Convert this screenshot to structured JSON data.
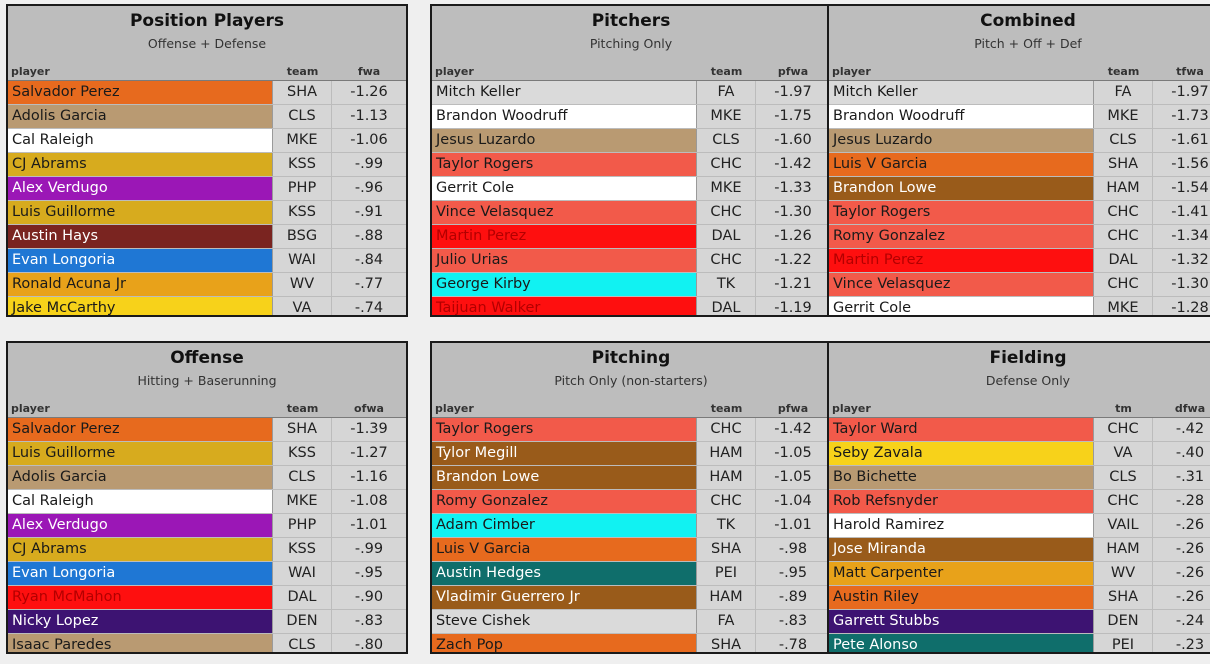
{
  "colors": {
    "SHA": "#e76a1e",
    "CLS": "#b99a72",
    "MKE": "#ffffff",
    "KSS": "#d7ab1e",
    "PHP": "#9b17b6",
    "BSG": "#7a2420",
    "WAI": "#1f77d4",
    "WV": "#e8a21a",
    "VA": "#f7d21a",
    "FA": "#dadada",
    "CHC": "#f25a4a",
    "DAL": "#fe0f0f",
    "TK": "#11f2f2",
    "HAM": "#995b1a",
    "DEN": "#3d1372",
    "PEI": "#0f6e6b",
    "VAIL": "#ffffff"
  },
  "panels": [
    {
      "title": "Position Players",
      "subtitle": "Offense + Defense",
      "headers": [
        "player",
        "team",
        "fwa"
      ],
      "rows": [
        {
          "player": "Salvador Perez",
          "team": "SHA",
          "value": "-1.26"
        },
        {
          "player": "Adolis Garcia",
          "team": "CLS",
          "value": "-1.13"
        },
        {
          "player": "Cal Raleigh",
          "team": "MKE",
          "value": "-1.06"
        },
        {
          "player": "CJ Abrams",
          "team": "KSS",
          "value": "-.99"
        },
        {
          "player": "Alex Verdugo",
          "team": "PHP",
          "value": "-.96"
        },
        {
          "player": "Luis Guillorme",
          "team": "KSS",
          "value": "-.91"
        },
        {
          "player": "Austin Hays",
          "team": "BSG",
          "value": "-.88"
        },
        {
          "player": "Evan Longoria",
          "team": "WAI",
          "value": "-.84"
        },
        {
          "player": "Ronald Acuna Jr",
          "team": "WV",
          "value": "-.77"
        },
        {
          "player": "Jake McCarthy",
          "team": "VA",
          "value": "-.74"
        }
      ]
    },
    {
      "title": "Pitchers",
      "subtitle": "Pitching Only",
      "headers": [
        "player",
        "team",
        "pfwa"
      ],
      "rows": [
        {
          "player": "Mitch Keller",
          "team": "FA",
          "value": "-1.97"
        },
        {
          "player": "Brandon Woodruff",
          "team": "MKE",
          "value": "-1.75"
        },
        {
          "player": "Jesus Luzardo",
          "team": "CLS",
          "value": "-1.60"
        },
        {
          "player": "Taylor Rogers",
          "team": "CHC",
          "value": "-1.42"
        },
        {
          "player": "Gerrit Cole",
          "team": "MKE",
          "value": "-1.33"
        },
        {
          "player": "Vince Velasquez",
          "team": "CHC",
          "value": "-1.30"
        },
        {
          "player": "Martin Perez",
          "team": "DAL",
          "value": "-1.26"
        },
        {
          "player": "Julio Urias",
          "team": "CHC",
          "value": "-1.22"
        },
        {
          "player": "George Kirby",
          "team": "TK",
          "value": "-1.21"
        },
        {
          "player": "Taijuan Walker",
          "team": "DAL",
          "value": "-1.19"
        }
      ]
    },
    {
      "title": "Combined",
      "subtitle": "Pitch + Off + Def",
      "headers": [
        "player",
        "team",
        "tfwa"
      ],
      "rows": [
        {
          "player": "Mitch Keller",
          "team": "FA",
          "value": "-1.97"
        },
        {
          "player": "Brandon Woodruff",
          "team": "MKE",
          "value": "-1.73"
        },
        {
          "player": "Jesus Luzardo",
          "team": "CLS",
          "value": "-1.61"
        },
        {
          "player": "Luis V Garcia",
          "team": "SHA",
          "value": "-1.56"
        },
        {
          "player": "Brandon Lowe",
          "team": "HAM",
          "value": "-1.54"
        },
        {
          "player": "Taylor Rogers",
          "team": "CHC",
          "value": "-1.41"
        },
        {
          "player": "Romy Gonzalez",
          "team": "CHC",
          "value": "-1.34"
        },
        {
          "player": "Martin Perez",
          "team": "DAL",
          "value": "-1.32"
        },
        {
          "player": "Vince Velasquez",
          "team": "CHC",
          "value": "-1.30"
        },
        {
          "player": "Gerrit Cole",
          "team": "MKE",
          "value": "-1.28"
        }
      ]
    },
    {
      "title": "Offense",
      "subtitle": "Hitting + Baserunning",
      "headers": [
        "player",
        "team",
        "ofwa"
      ],
      "rows": [
        {
          "player": "Salvador Perez",
          "team": "SHA",
          "value": "-1.39"
        },
        {
          "player": "Luis Guillorme",
          "team": "KSS",
          "value": "-1.27"
        },
        {
          "player": "Adolis Garcia",
          "team": "CLS",
          "value": "-1.16"
        },
        {
          "player": "Cal Raleigh",
          "team": "MKE",
          "value": "-1.08"
        },
        {
          "player": "Alex Verdugo",
          "team": "PHP",
          "value": "-1.01"
        },
        {
          "player": "CJ Abrams",
          "team": "KSS",
          "value": "-.99"
        },
        {
          "player": "Evan Longoria",
          "team": "WAI",
          "value": "-.95"
        },
        {
          "player": "Ryan McMahon",
          "team": "DAL",
          "value": "-.90"
        },
        {
          "player": "Nicky Lopez",
          "team": "DEN",
          "value": "-.83"
        },
        {
          "player": "Isaac Paredes",
          "team": "CLS",
          "value": "-.80"
        }
      ]
    },
    {
      "title": "Pitching",
      "subtitle": "Pitch Only (non-starters)",
      "headers": [
        "player",
        "team",
        "pfwa"
      ],
      "rows": [
        {
          "player": "Taylor Rogers",
          "team": "CHC",
          "value": "-1.42"
        },
        {
          "player": "Tylor Megill",
          "team": "HAM",
          "value": "-1.05"
        },
        {
          "player": "Brandon Lowe",
          "team": "HAM",
          "value": "-1.05"
        },
        {
          "player": "Romy Gonzalez",
          "team": "CHC",
          "value": "-1.04"
        },
        {
          "player": "Adam Cimber",
          "team": "TK",
          "value": "-1.01"
        },
        {
          "player": "Luis V Garcia",
          "team": "SHA",
          "value": "-.98"
        },
        {
          "player": "Austin Hedges",
          "team": "PEI",
          "value": "-.95"
        },
        {
          "player": "Vladimir Guerrero Jr",
          "team": "HAM",
          "value": "-.89"
        },
        {
          "player": "Steve Cishek",
          "team": "FA",
          "value": "-.83"
        },
        {
          "player": "Zach Pop",
          "team": "SHA",
          "value": "-.78"
        }
      ]
    },
    {
      "title": "Fielding",
      "subtitle": "Defense Only",
      "headers": [
        "player",
        "tm",
        "dfwa"
      ],
      "rows": [
        {
          "player": "Taylor Ward",
          "team": "CHC",
          "value": "-.42"
        },
        {
          "player": "Seby Zavala",
          "team": "VA",
          "value": "-.40"
        },
        {
          "player": "Bo Bichette",
          "team": "CLS",
          "value": "-.31"
        },
        {
          "player": "Rob Refsnyder",
          "team": "CHC",
          "value": "-.28"
        },
        {
          "player": "Harold Ramirez",
          "team": "VAIL",
          "value": "-.26"
        },
        {
          "player": "Jose Miranda",
          "team": "HAM",
          "value": "-.26"
        },
        {
          "player": "Matt Carpenter",
          "team": "WV",
          "value": "-.26"
        },
        {
          "player": "Austin Riley",
          "team": "SHA",
          "value": "-.26"
        },
        {
          "player": "Garrett Stubbs",
          "team": "DEN",
          "value": "-.24"
        },
        {
          "player": "Pete Alonso",
          "team": "PEI",
          "value": "-.23"
        }
      ]
    }
  ]
}
